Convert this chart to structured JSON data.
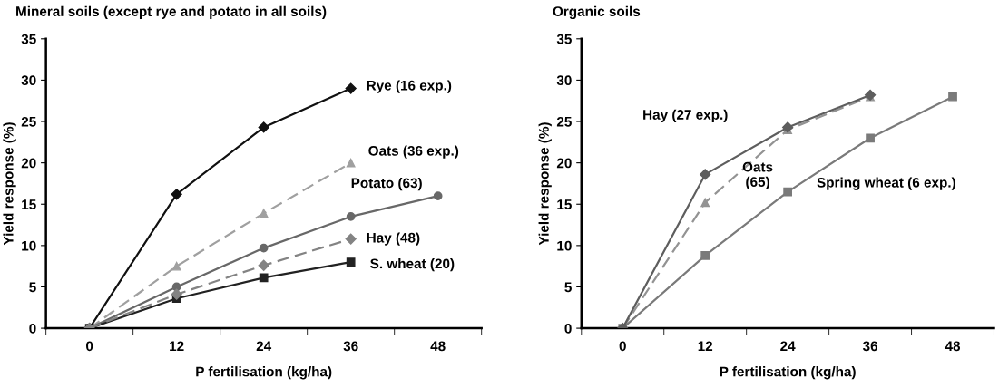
{
  "chart_data": [
    {
      "type": "line",
      "title": "Mineral soils (except rye and potato in all soils)",
      "xlabel": "P fertilisation (kg/ha)",
      "ylabel": "Yield response (%)",
      "categories": [
        "0",
        "12",
        "24",
        "36",
        "48"
      ],
      "ylim": [
        0,
        35
      ],
      "yticks": [
        0,
        5,
        10,
        15,
        20,
        25,
        30,
        35
      ],
      "grid": false,
      "legend": false,
      "series": [
        {
          "name": "Rye (16 exp.)",
          "color": "#111111",
          "marker": "diamond",
          "line_style": "solid",
          "values": [
            0,
            16.2,
            24.3,
            29,
            null
          ]
        },
        {
          "name": "Oats (36 exp.)",
          "color": "#a0a0a0",
          "marker": "triangle",
          "line_style": "dashed",
          "values": [
            0,
            7.5,
            13.9,
            20,
            null
          ]
        },
        {
          "name": "Potato (63)",
          "color": "#686868",
          "marker": "circle",
          "line_style": "solid",
          "values": [
            0,
            5,
            9.7,
            13.5,
            16
          ]
        },
        {
          "name": "Hay (48)",
          "color": "#838383",
          "marker": "diamond",
          "line_style": "dashed",
          "values": [
            0,
            4.1,
            7.6,
            10.8,
            null
          ]
        },
        {
          "name": "S. wheat (20)",
          "color": "#222222",
          "marker": "square",
          "line_style": "solid",
          "values": [
            0,
            3.6,
            6.1,
            8,
            null
          ]
        }
      ]
    },
    {
      "type": "line",
      "title": "Organic soils",
      "xlabel": "P fertilisation (kg/ha)",
      "ylabel": "Yield response (%)",
      "categories": [
        "0",
        "12",
        "24",
        "36",
        "48"
      ],
      "ylim": [
        0,
        35
      ],
      "yticks": [
        0,
        5,
        10,
        15,
        20,
        25,
        30,
        35
      ],
      "grid": false,
      "legend": false,
      "series": [
        {
          "name": "Hay (27 exp.)",
          "color": "#5e5e5e",
          "marker": "diamond",
          "line_style": "solid",
          "values": [
            0,
            18.6,
            24.3,
            28.2,
            null
          ]
        },
        {
          "name": "Oats\n(65)",
          "color": "#939393",
          "marker": "triangle",
          "line_style": "dashed",
          "values": [
            0,
            15.2,
            24,
            28,
            null
          ]
        },
        {
          "name": "Spring wheat (6 exp.)",
          "color": "#7a7a7a",
          "marker": "square",
          "line_style": "solid",
          "values": [
            0,
            8.8,
            16.5,
            23,
            28
          ]
        }
      ]
    }
  ]
}
